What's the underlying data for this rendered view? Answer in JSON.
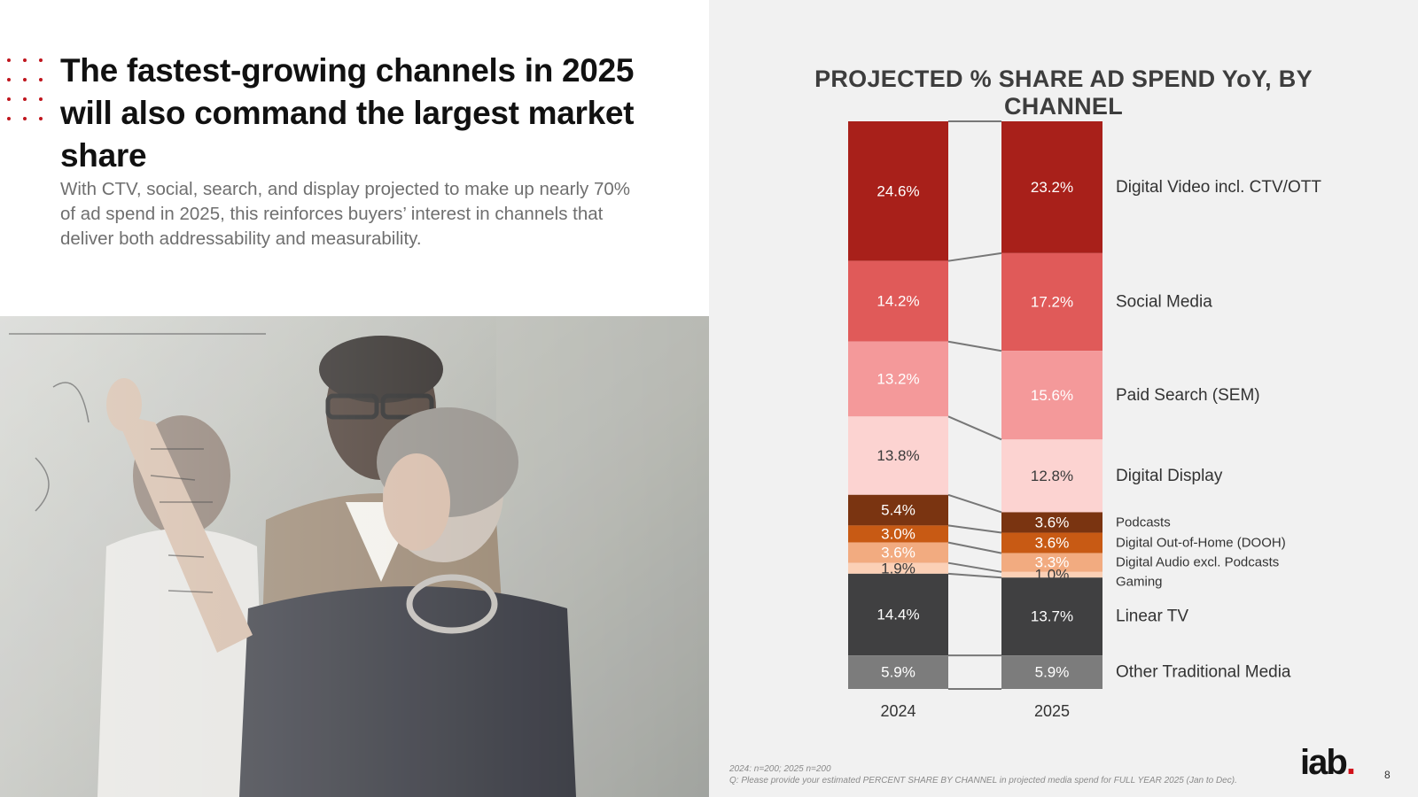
{
  "headline": "The fastest-growing channels in 2025 will also command the largest market share",
  "subtext": "With CTV, social, search, and display projected to make up nearly 70% of ad spend in 2025, this reinforces buyers’ interest in channels that deliver both addressability and measurability.",
  "chart_data": {
    "type": "bar",
    "stacked": true,
    "title": "PROJECTED % SHARE AD SPEND YoY, BY CHANNEL",
    "categories": [
      "2024",
      "2025"
    ],
    "series": [
      {
        "name": "Digital Video incl. CTV/OTT",
        "values": [
          24.6,
          23.2
        ],
        "labels": [
          "24.6%",
          "23.2%"
        ],
        "color": "#a8201a",
        "text_color": "#ffffff"
      },
      {
        "name": "Social Media",
        "values": [
          14.2,
          17.2
        ],
        "labels": [
          "14.2%",
          "17.2%"
        ],
        "color": "#e05a59",
        "text_color": "#ffffff"
      },
      {
        "name": "Paid Search (SEM)",
        "values": [
          13.2,
          15.6
        ],
        "labels": [
          "13.2%",
          "15.6%"
        ],
        "color": "#f4999a",
        "text_color": "#ffffff"
      },
      {
        "name": "Digital Display",
        "values": [
          13.8,
          12.8
        ],
        "labels": [
          "13.8%",
          "12.8%"
        ],
        "color": "#fcd3d1",
        "text_color": "#3a3a3a"
      },
      {
        "name": "Podcasts",
        "values": [
          5.4,
          3.6
        ],
        "labels": [
          "5.4%",
          "3.6%"
        ],
        "color": "#7a3411",
        "text_color": "#ffffff"
      },
      {
        "name": "Digital Out-of-Home (DOOH)",
        "values": [
          3.0,
          3.6
        ],
        "labels": [
          "3.0%",
          "3.6%"
        ],
        "color": "#c85a14",
        "text_color": "#ffffff"
      },
      {
        "name": "Digital Audio excl. Podcasts",
        "values": [
          3.6,
          3.3
        ],
        "labels": [
          "3.6%",
          "3.3%"
        ],
        "color": "#f2ab80",
        "text_color": "#ffffff"
      },
      {
        "name": "Gaming",
        "values": [
          1.9,
          1.0
        ],
        "labels": [
          "1.9%",
          "1.0%"
        ],
        "color": "#fbd0b6",
        "text_color": "#3a3a3a"
      },
      {
        "name": "Linear TV",
        "values": [
          14.4,
          13.7
        ],
        "labels": [
          "14.4%",
          "13.7%"
        ],
        "color": "#404041",
        "text_color": "#ffffff"
      },
      {
        "name": "Other Traditional Media",
        "values": [
          5.9,
          5.9
        ],
        "labels": [
          "5.9%",
          "5.9%"
        ],
        "color": "#7c7c7c",
        "text_color": "#ffffff"
      }
    ],
    "connector_color": "#777777"
  },
  "footnote": {
    "line1": "2024: n=200; 2025 n=200",
    "line2": "Q: Please provide your estimated PERCENT SHARE BY CHANNEL in projected media spend for FULL YEAR 2025 (Jan to Dec)."
  },
  "logo": {
    "text_i": "i",
    "text_rest": "ab",
    "period": "."
  },
  "page_number": "8",
  "colors": {
    "accent": "#c0161e",
    "panel": "#f1f1f1"
  }
}
